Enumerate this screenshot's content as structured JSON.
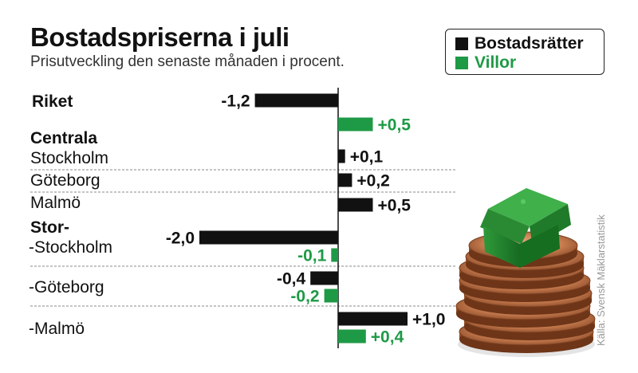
{
  "title": "Bostadspriserna i juli",
  "subtitle": "Prisutveckling den senaste månaden i procent.",
  "source": "Källa: Svensk Mäklarstatistik",
  "colors": {
    "bostadsratter": "#111111",
    "villor": "#1e9a46",
    "divider": "#888888"
  },
  "chart_data": {
    "type": "bar",
    "orientation": "horizontal",
    "title": "Bostadspriserna i juli",
    "subtitle": "Prisutveckling den senaste månaden i procent.",
    "legend": {
      "position": "top-right",
      "entries": [
        "Bostadsrätter",
        "Villor"
      ]
    },
    "headings": [
      "Centrala",
      "Stor-"
    ],
    "categories": [
      "Riket",
      "Stockholm",
      "Göteborg",
      "Malmö",
      "-Stockholm",
      "-Göteborg",
      "-Malmö"
    ],
    "series": [
      {
        "name": "Bostadsrätter",
        "values": [
          -1.2,
          0.1,
          0.2,
          0.5,
          -2.0,
          -0.4,
          1.0
        ],
        "labels": [
          "-1,2",
          "+0,1",
          "+0,2",
          "+0,5",
          "-2,0",
          "-0,4",
          "+1,0"
        ]
      },
      {
        "name": "Villor",
        "values": [
          0.5,
          null,
          null,
          null,
          -0.1,
          -0.2,
          0.4
        ],
        "labels": [
          "+0,5",
          "",
          "",
          "",
          "-0,1",
          "-0,2",
          "+0,4"
        ]
      }
    ],
    "xlim": [
      -2.7,
      1.5
    ]
  }
}
